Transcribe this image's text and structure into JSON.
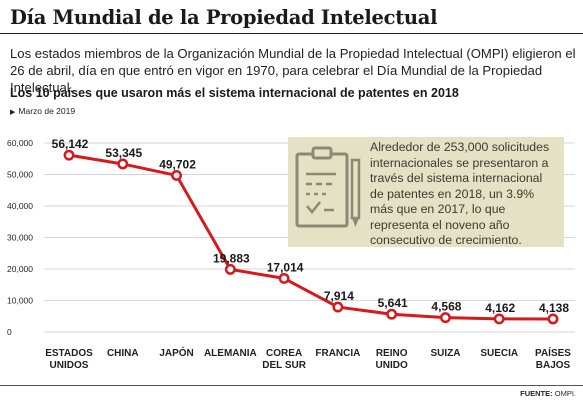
{
  "header": {
    "title": "Día Mundial de la Propiedad Intelectual",
    "intro": "Los estados miembros de la Organización Mundial de la Propiedad Intelectual (OMPI) eligieron el 26 de abril, día en que entró en vigor en 1970, para celebrar el Día Mundial de la Propiedad Intelectual."
  },
  "callout": {
    "text": "Alrededor de 253,000 solicitudes internacionales se presentaron a través del sistema internacional de patentes en 2018, un 3.9% más que en 2017, lo que representa el noveno año consecutivo de crecimiento.",
    "icon": "clipboard-checklist-pencil-icon"
  },
  "source": {
    "label": "FUENTE:",
    "value": "OMPI."
  },
  "colors": {
    "line": "#d7191c",
    "grid": "#c8c8c8",
    "callout_bg": "#e4e2c4"
  },
  "chart_data": {
    "type": "line",
    "title": "Los 10 países que usaron más el sistema internacional de patentes en 2018",
    "subtitle": "Marzo de 2019",
    "categories": [
      [
        "ESTADOS",
        "UNIDOS"
      ],
      [
        "CHINA"
      ],
      [
        "JAPÓN"
      ],
      [
        "ALEMANIA"
      ],
      [
        "COREA",
        "DEL SUR"
      ],
      [
        "FRANCIA"
      ],
      [
        "REINO",
        "UNIDO"
      ],
      [
        "SUIZA"
      ],
      [
        "SUECIA"
      ],
      [
        "PAÍSES",
        "BAJOS"
      ]
    ],
    "values": [
      56142,
      53345,
      49702,
      19883,
      17014,
      7914,
      5641,
      4568,
      4162,
      4138
    ],
    "value_labels": [
      "56,142",
      "53,345",
      "49,702",
      "19,883",
      "17,014",
      "7,914",
      "5,641",
      "4,568",
      "4,162",
      "4,138"
    ],
    "yticks": [
      0,
      10000,
      20000,
      30000,
      40000,
      50000,
      60000
    ],
    "ytick_labels": [
      "0",
      "10,000",
      "20,000",
      "30,000",
      "40,000",
      "50,000",
      "60,000"
    ],
    "ylim": [
      0,
      60000
    ],
    "xlabel": "",
    "ylabel": "",
    "grid": true,
    "legend": "none"
  }
}
